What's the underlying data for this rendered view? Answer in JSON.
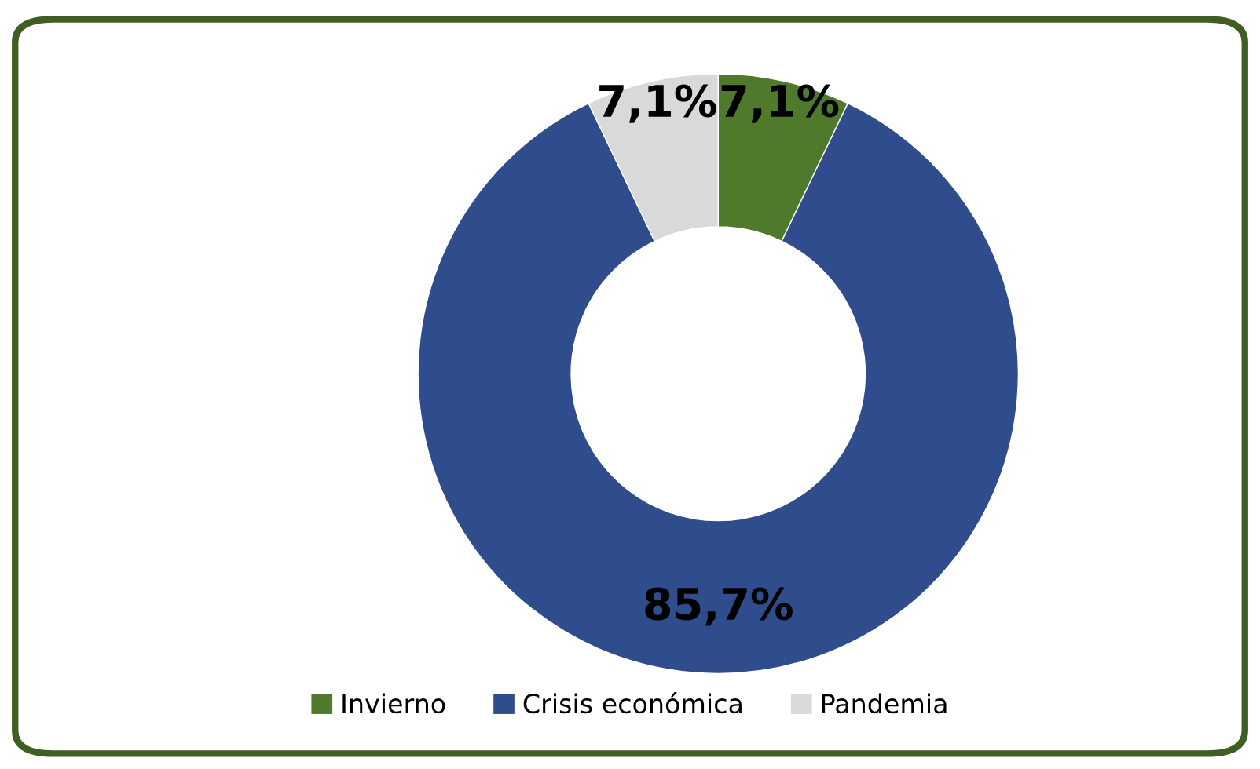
{
  "chart_data": {
    "type": "donut",
    "categories": [
      "Invierno",
      "Crisis económica",
      "Pandemia"
    ],
    "values": [
      7.1,
      85.7,
      7.1
    ],
    "value_labels": [
      "7,1%",
      "85,7%",
      "7,1%"
    ],
    "colors": [
      "#4f7a2c",
      "#2f4c8c",
      "#d9d9d9"
    ],
    "legend": "bottom"
  }
}
